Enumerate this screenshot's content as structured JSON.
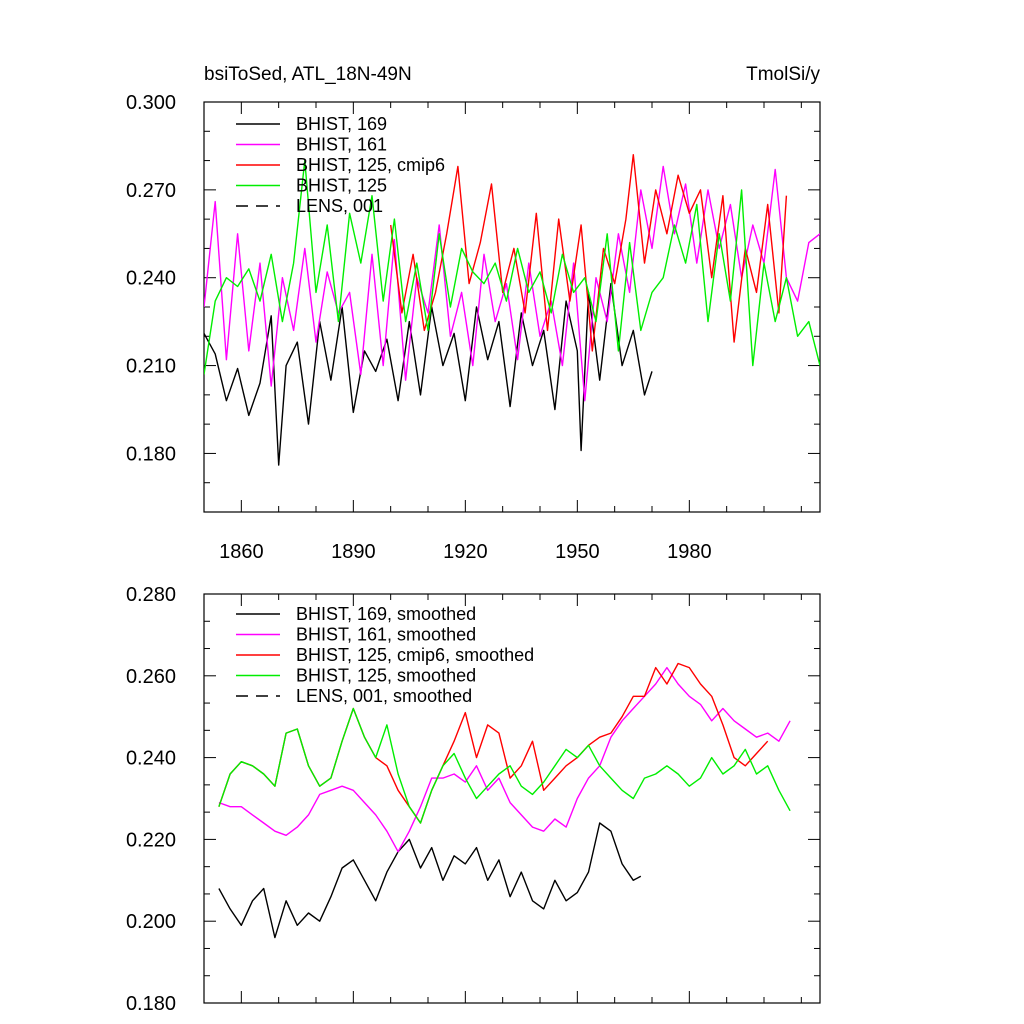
{
  "chart_data": [
    {
      "type": "line",
      "title": "bsiToSed, ATL_18N-49N",
      "title_right": "TmolSi/y",
      "xlim": [
        1850,
        2015
      ],
      "ylim": [
        0.16,
        0.3
      ],
      "xticks": [
        1860,
        1890,
        1920,
        1950,
        1980
      ],
      "xtick_labels": [
        "1860",
        "1890",
        "1920",
        "1950",
        "1980"
      ],
      "yticks": [
        0.18,
        0.21,
        0.24,
        0.27,
        0.3
      ],
      "ytick_labels": [
        "0.180",
        "0.210",
        "0.240",
        "0.270",
        "0.300"
      ],
      "legend_position": "top-left",
      "series": [
        {
          "name": "BHIST, 169",
          "color": "#000000",
          "dash": "solid",
          "x": [
            1850,
            1853,
            1856,
            1859,
            1862,
            1865,
            1868,
            1870,
            1872,
            1875,
            1878,
            1881,
            1884,
            1887,
            1890,
            1893,
            1896,
            1899,
            1902,
            1905,
            1908,
            1911,
            1914,
            1917,
            1920,
            1923,
            1926,
            1929,
            1932,
            1935,
            1938,
            1941,
            1944,
            1947,
            1950,
            1951,
            1953,
            1956,
            1959,
            1962,
            1965,
            1968,
            1970
          ],
          "values": [
            0.221,
            0.214,
            0.198,
            0.209,
            0.193,
            0.204,
            0.227,
            0.176,
            0.21,
            0.218,
            0.19,
            0.225,
            0.205,
            0.23,
            0.194,
            0.215,
            0.208,
            0.219,
            0.198,
            0.225,
            0.2,
            0.23,
            0.21,
            0.221,
            0.198,
            0.23,
            0.212,
            0.225,
            0.196,
            0.228,
            0.21,
            0.222,
            0.195,
            0.232,
            0.215,
            0.181,
            0.235,
            0.205,
            0.238,
            0.21,
            0.222,
            0.2,
            0.208
          ]
        },
        {
          "name": "BHIST, 161",
          "color": "#ff00ff",
          "dash": "solid",
          "x": [
            1850,
            1853,
            1856,
            1859,
            1862,
            1865,
            1868,
            1871,
            1874,
            1877,
            1880,
            1883,
            1886,
            1889,
            1892,
            1895,
            1898,
            1901,
            1904,
            1907,
            1910,
            1913,
            1916,
            1919,
            1922,
            1925,
            1928,
            1931,
            1934,
            1937,
            1940,
            1943,
            1946,
            1949,
            1952,
            1955,
            1958,
            1961,
            1964,
            1967,
            1970,
            1973,
            1976,
            1979,
            1982,
            1985,
            1988,
            1991,
            1994,
            1997,
            2000,
            2003,
            2006,
            2009,
            2012,
            2015
          ],
          "values": [
            0.23,
            0.266,
            0.212,
            0.255,
            0.215,
            0.245,
            0.203,
            0.24,
            0.222,
            0.25,
            0.218,
            0.242,
            0.228,
            0.235,
            0.207,
            0.248,
            0.21,
            0.253,
            0.205,
            0.24,
            0.228,
            0.258,
            0.22,
            0.235,
            0.21,
            0.248,
            0.225,
            0.238,
            0.212,
            0.245,
            0.22,
            0.232,
            0.21,
            0.245,
            0.198,
            0.24,
            0.225,
            0.255,
            0.235,
            0.27,
            0.25,
            0.278,
            0.255,
            0.272,
            0.245,
            0.27,
            0.25,
            0.265,
            0.24,
            0.258,
            0.245,
            0.277,
            0.24,
            0.232,
            0.252,
            0.255
          ]
        },
        {
          "name": "BHIST, 125, cmip6",
          "color": "#ff0000",
          "dash": "solid",
          "x": [
            1900,
            1903,
            1906,
            1909,
            1912,
            1915,
            1918,
            1921,
            1924,
            1927,
            1930,
            1933,
            1936,
            1939,
            1942,
            1945,
            1948,
            1951,
            1954,
            1957,
            1960,
            1963,
            1965,
            1968,
            1971,
            1974,
            1977,
            1980,
            1983,
            1986,
            1989,
            1992,
            1995,
            1998,
            2001,
            2004,
            2006
          ],
          "values": [
            0.258,
            0.228,
            0.248,
            0.222,
            0.235,
            0.255,
            0.278,
            0.238,
            0.252,
            0.272,
            0.235,
            0.25,
            0.228,
            0.262,
            0.222,
            0.26,
            0.232,
            0.258,
            0.215,
            0.25,
            0.238,
            0.26,
            0.282,
            0.245,
            0.27,
            0.255,
            0.275,
            0.262,
            0.27,
            0.24,
            0.268,
            0.218,
            0.25,
            0.235,
            0.265,
            0.228,
            0.268
          ]
        },
        {
          "name": "BHIST, 125",
          "color": "#00ee00",
          "dash": "solid",
          "x": [
            1850,
            1853,
            1856,
            1859,
            1862,
            1865,
            1868,
            1871,
            1874,
            1877,
            1880,
            1883,
            1886,
            1889,
            1892,
            1895,
            1898,
            1901,
            1904,
            1907,
            1910,
            1913,
            1916,
            1919,
            1922,
            1925,
            1928,
            1931,
            1934,
            1937,
            1940,
            1943,
            1946,
            1949,
            1952,
            1955,
            1958,
            1961,
            1964,
            1967,
            1970,
            1973,
            1976,
            1979,
            1982,
            1985,
            1988,
            1991,
            1994,
            1997,
            2000,
            2003,
            2006,
            2009,
            2012,
            2015
          ],
          "values": [
            0.207,
            0.232,
            0.24,
            0.237,
            0.243,
            0.232,
            0.248,
            0.225,
            0.245,
            0.28,
            0.235,
            0.258,
            0.225,
            0.262,
            0.245,
            0.268,
            0.232,
            0.26,
            0.225,
            0.245,
            0.222,
            0.255,
            0.23,
            0.25,
            0.242,
            0.238,
            0.245,
            0.232,
            0.25,
            0.235,
            0.242,
            0.228,
            0.248,
            0.235,
            0.24,
            0.225,
            0.255,
            0.215,
            0.252,
            0.222,
            0.235,
            0.24,
            0.258,
            0.245,
            0.265,
            0.225,
            0.255,
            0.232,
            0.27,
            0.21,
            0.245,
            0.225,
            0.24,
            0.22,
            0.225,
            0.21
          ]
        },
        {
          "name": "LENS, 001",
          "color": "#000000",
          "dash": "dashed",
          "x": [],
          "values": []
        }
      ]
    },
    {
      "type": "line",
      "title": "",
      "xlim": [
        1850,
        2015
      ],
      "ylim": [
        0.18,
        0.28
      ],
      "xticks": [
        1860,
        1890,
        1920,
        1950,
        1980
      ],
      "yticks": [
        0.18,
        0.2,
        0.22,
        0.24,
        0.26,
        0.28
      ],
      "ytick_labels": [
        "0.180",
        "0.200",
        "0.220",
        "0.240",
        "0.260",
        "0.280"
      ],
      "legend_position": "top-left",
      "series": [
        {
          "name": "BHIST, 169, smoothed",
          "color": "#000000",
          "dash": "solid",
          "x": [
            1854,
            1857,
            1860,
            1863,
            1866,
            1869,
            1872,
            1875,
            1878,
            1881,
            1884,
            1887,
            1890,
            1893,
            1896,
            1899,
            1902,
            1905,
            1908,
            1911,
            1914,
            1917,
            1920,
            1923,
            1926,
            1929,
            1932,
            1935,
            1938,
            1941,
            1944,
            1947,
            1950,
            1953,
            1956,
            1959,
            1962,
            1965,
            1967
          ],
          "values": [
            0.208,
            0.203,
            0.199,
            0.205,
            0.208,
            0.196,
            0.205,
            0.199,
            0.202,
            0.2,
            0.206,
            0.213,
            0.215,
            0.21,
            0.205,
            0.212,
            0.217,
            0.22,
            0.213,
            0.218,
            0.21,
            0.216,
            0.214,
            0.218,
            0.21,
            0.215,
            0.206,
            0.212,
            0.205,
            0.203,
            0.21,
            0.205,
            0.207,
            0.212,
            0.224,
            0.222,
            0.214,
            0.21,
            0.211
          ]
        },
        {
          "name": "BHIST, 161, smoothed",
          "color": "#ff00ff",
          "dash": "solid",
          "x": [
            1854,
            1857,
            1860,
            1863,
            1866,
            1869,
            1872,
            1875,
            1878,
            1881,
            1884,
            1887,
            1890,
            1893,
            1896,
            1899,
            1902,
            1905,
            1908,
            1911,
            1914,
            1917,
            1920,
            1923,
            1926,
            1929,
            1932,
            1935,
            1938,
            1941,
            1944,
            1947,
            1950,
            1953,
            1956,
            1959,
            1962,
            1965,
            1968,
            1971,
            1974,
            1977,
            1980,
            1983,
            1986,
            1989,
            1992,
            1995,
            1998,
            2001,
            2004,
            2007
          ],
          "values": [
            0.229,
            0.228,
            0.228,
            0.226,
            0.224,
            0.222,
            0.221,
            0.223,
            0.226,
            0.231,
            0.232,
            0.233,
            0.232,
            0.229,
            0.226,
            0.222,
            0.217,
            0.222,
            0.228,
            0.235,
            0.235,
            0.236,
            0.234,
            0.238,
            0.232,
            0.235,
            0.229,
            0.226,
            0.223,
            0.222,
            0.225,
            0.223,
            0.23,
            0.235,
            0.238,
            0.245,
            0.249,
            0.252,
            0.255,
            0.258,
            0.262,
            0.258,
            0.255,
            0.253,
            0.249,
            0.252,
            0.249,
            0.247,
            0.245,
            0.246,
            0.244,
            0.249
          ]
        },
        {
          "name": "BHIST, 125, cmip6, smoothed",
          "color": "#ff0000",
          "dash": "solid",
          "x": [
            1854,
            1857,
            1860,
            1863,
            1866,
            1869,
            1872,
            1875,
            1878,
            1881,
            1884,
            1887,
            1890,
            1893,
            1896,
            1899,
            1902,
            1905,
            1908,
            1911,
            1914,
            1917,
            1920,
            1923,
            1926,
            1929,
            1932,
            1935,
            1938,
            1941,
            1944,
            1947,
            1950,
            1953,
            1956,
            1959,
            1962,
            1965,
            1968,
            1971,
            1974,
            1977,
            1980,
            1983,
            1986,
            1989,
            1992,
            1995,
            1998,
            2001
          ],
          "values": [
            0.228,
            0.236,
            0.239,
            0.238,
            0.236,
            0.233,
            0.246,
            0.247,
            0.238,
            0.233,
            0.235,
            0.244,
            0.252,
            0.245,
            0.24,
            0.238,
            0.232,
            0.228,
            0.224,
            0.232,
            0.238,
            0.244,
            0.251,
            0.24,
            0.248,
            0.246,
            0.235,
            0.238,
            0.244,
            0.232,
            0.235,
            0.238,
            0.24,
            0.243,
            0.245,
            0.246,
            0.25,
            0.255,
            0.255,
            0.262,
            0.258,
            0.263,
            0.262,
            0.258,
            0.255,
            0.248,
            0.24,
            0.238,
            0.241,
            0.244
          ]
        },
        {
          "name": "BHIST, 125, smoothed",
          "color": "#00ee00",
          "dash": "solid",
          "x": [
            1854,
            1857,
            1860,
            1863,
            1866,
            1869,
            1872,
            1875,
            1878,
            1881,
            1884,
            1887,
            1890,
            1893,
            1896,
            1899,
            1902,
            1905,
            1908,
            1911,
            1914,
            1917,
            1920,
            1923,
            1926,
            1929,
            1932,
            1935,
            1938,
            1941,
            1944,
            1947,
            1950,
            1953,
            1956,
            1959,
            1962,
            1965,
            1968,
            1971,
            1974,
            1977,
            1980,
            1983,
            1986,
            1989,
            1992,
            1995,
            1998,
            2001,
            2004,
            2007
          ],
          "values": [
            0.228,
            0.236,
            0.239,
            0.238,
            0.236,
            0.233,
            0.246,
            0.247,
            0.238,
            0.233,
            0.235,
            0.244,
            0.252,
            0.245,
            0.24,
            0.248,
            0.236,
            0.228,
            0.224,
            0.232,
            0.238,
            0.241,
            0.235,
            0.23,
            0.233,
            0.236,
            0.238,
            0.233,
            0.231,
            0.234,
            0.238,
            0.242,
            0.24,
            0.243,
            0.238,
            0.235,
            0.232,
            0.23,
            0.235,
            0.236,
            0.238,
            0.236,
            0.233,
            0.235,
            0.24,
            0.236,
            0.238,
            0.242,
            0.236,
            0.238,
            0.232,
            0.227
          ]
        },
        {
          "name": "LENS, 001, smoothed",
          "color": "#000000",
          "dash": "dashed",
          "x": [],
          "values": []
        }
      ]
    }
  ]
}
